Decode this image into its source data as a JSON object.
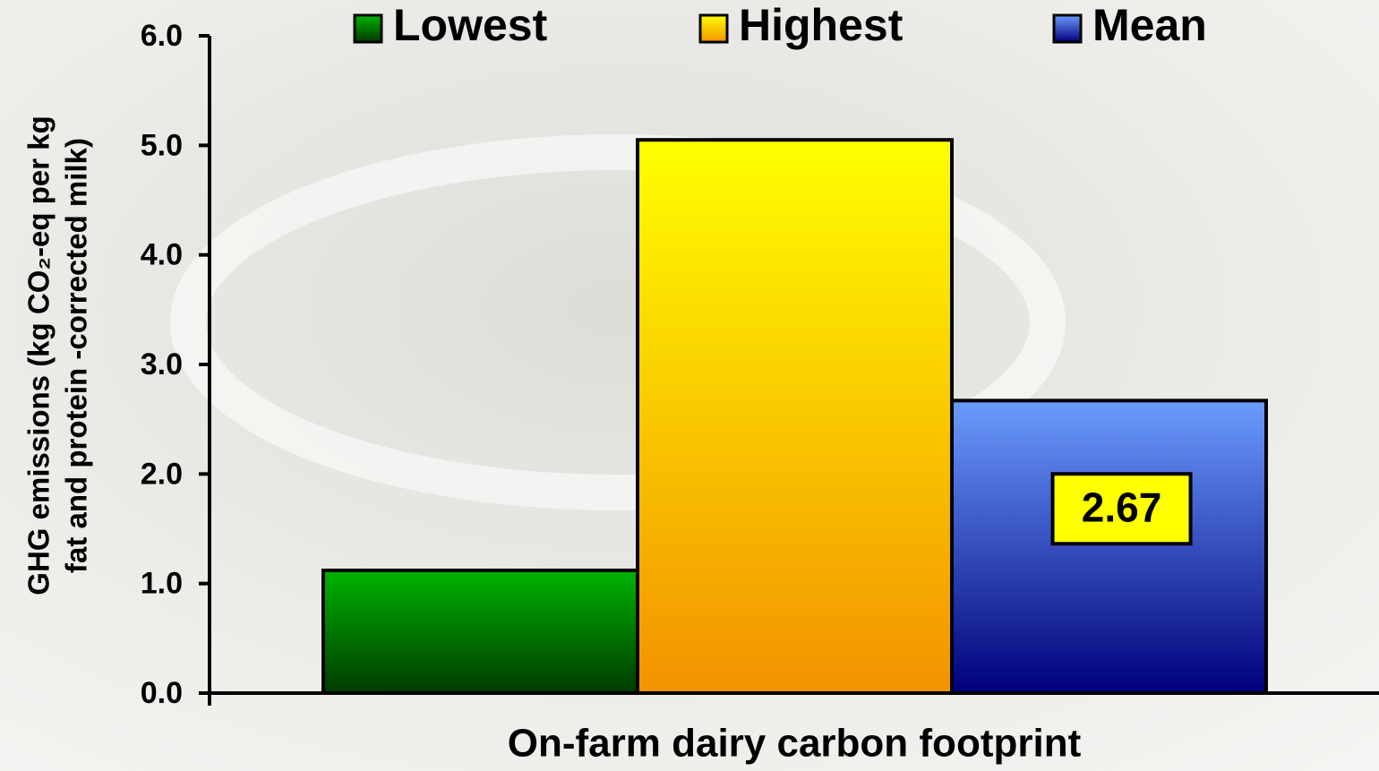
{
  "chart_data": {
    "type": "bar",
    "x_label": "On-farm dairy carbon footprint",
    "y_label": [
      "GHG emissions (kg CO₂-eq per kg",
      "fat and protein -corrected milk)"
    ],
    "series": [
      {
        "name": "Lowest",
        "color": "#00b400",
        "color_end": "#003a00",
        "values": [
          1.12
        ]
      },
      {
        "name": "Highest",
        "color": "#ffff00",
        "color_end": "#f39200",
        "values": [
          5.05
        ]
      },
      {
        "name": "Mean",
        "color": "#6b9cff",
        "color_end": "#00007a",
        "values": [
          2.67
        ],
        "value_labels": [
          "2.67"
        ]
      }
    ],
    "ylim": [
      0,
      6
    ],
    "yticks": [
      {
        "value": 0,
        "label": "0.0"
      },
      {
        "value": 1,
        "label": "1.0"
      },
      {
        "value": 2,
        "label": "2.0"
      },
      {
        "value": 3,
        "label": "3.0"
      },
      {
        "value": 4,
        "label": "4.0"
      },
      {
        "value": 5,
        "label": "5.0"
      },
      {
        "value": 6,
        "label": "6.0"
      }
    ],
    "legend": "top"
  }
}
